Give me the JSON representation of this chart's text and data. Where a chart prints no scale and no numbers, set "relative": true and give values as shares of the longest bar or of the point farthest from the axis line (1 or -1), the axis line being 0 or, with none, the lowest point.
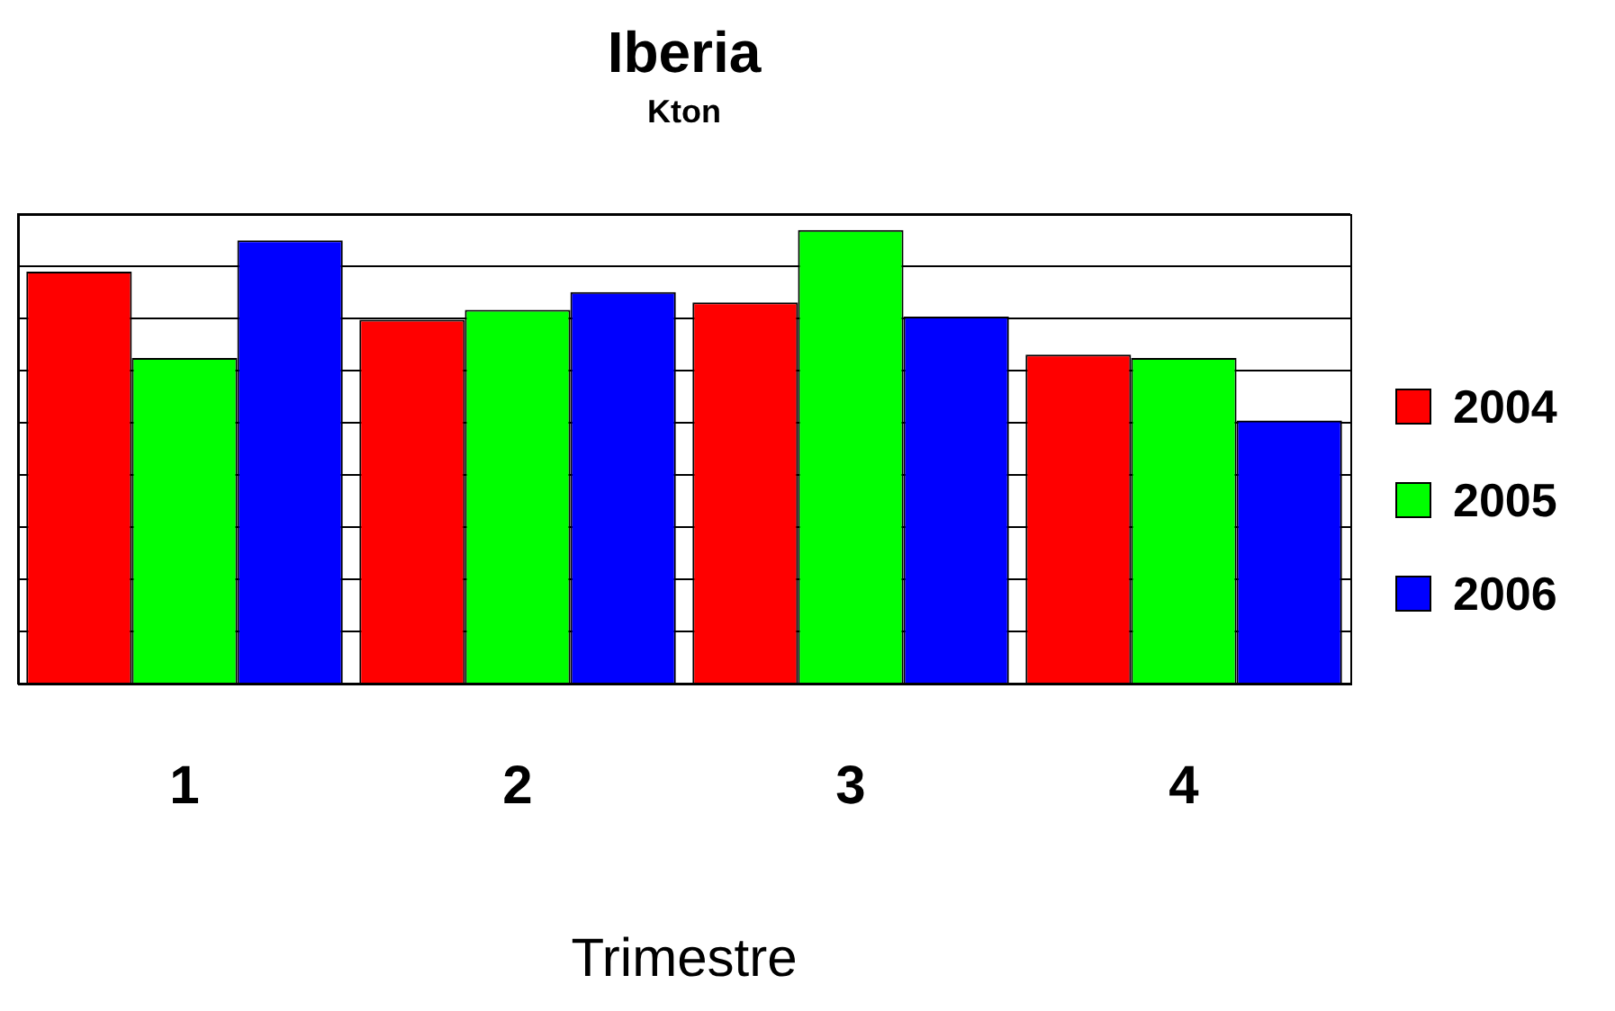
{
  "chart_data": {
    "type": "bar",
    "title": "Iberia",
    "subtitle": "Kton",
    "xlabel": "Trimestre",
    "categories": [
      "1",
      "2",
      "3",
      "4"
    ],
    "relative": true,
    "grid": "y",
    "legend": "right",
    "series": [
      {
        "name": "2004",
        "color": "#ff0000",
        "values": [
          0.908,
          0.802,
          0.84,
          0.725
        ]
      },
      {
        "name": "2005",
        "color": "#00ff00",
        "values": [
          0.718,
          0.824,
          1,
          0.718
        ]
      },
      {
        "name": "2006",
        "color": "#0000ff",
        "values": [
          0.977,
          0.863,
          0.809,
          0.58
        ]
      }
    ]
  }
}
